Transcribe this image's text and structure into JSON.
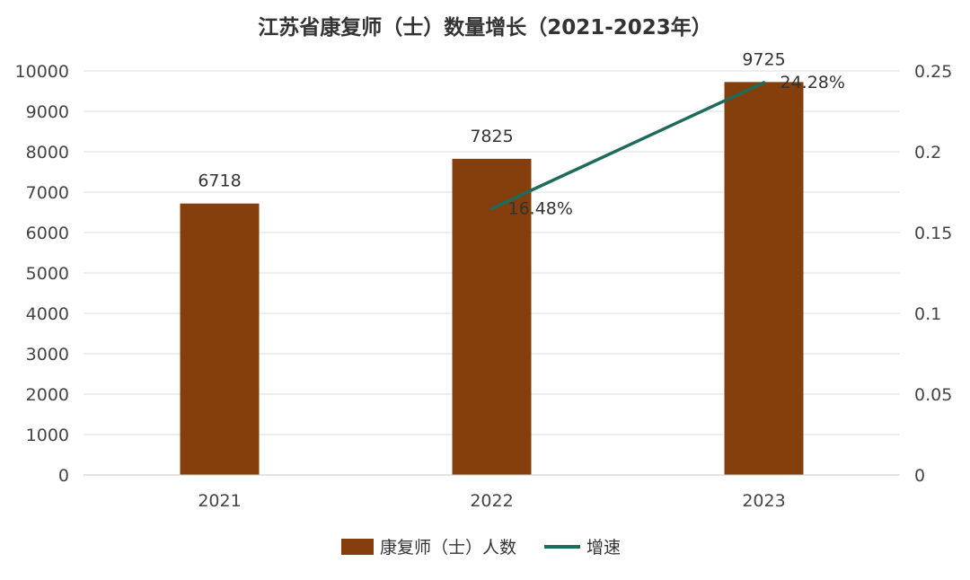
{
  "chart_data": {
    "type": "bar",
    "title": "江苏省康复师（士）数量增长（2021-2023年）",
    "categories": [
      "2021",
      "2022",
      "2023"
    ],
    "series": [
      {
        "name": "康复师（士）人数",
        "type": "bar",
        "axis": "left",
        "color": "#843F0C",
        "values": [
          6718,
          7825,
          9725
        ],
        "data_labels": [
          "6718",
          "7825",
          "9725"
        ]
      },
      {
        "name": "增速",
        "type": "line",
        "axis": "right",
        "color": "#1E6B5C",
        "values": [
          null,
          0.1648,
          0.2428
        ],
        "data_labels": [
          "",
          "16.48%",
          "24.28%"
        ]
      }
    ],
    "y_left": {
      "min": 0,
      "max": 10000,
      "ticks": [
        "0",
        "1000",
        "2000",
        "3000",
        "4000",
        "5000",
        "6000",
        "7000",
        "8000",
        "9000",
        "10000"
      ]
    },
    "y_right": {
      "min": 0,
      "max": 0.25,
      "ticks": [
        "0",
        "0.05",
        "0.1",
        "0.15",
        "0.2",
        "0.25"
      ]
    },
    "grid": true,
    "legend_position": "bottom"
  }
}
